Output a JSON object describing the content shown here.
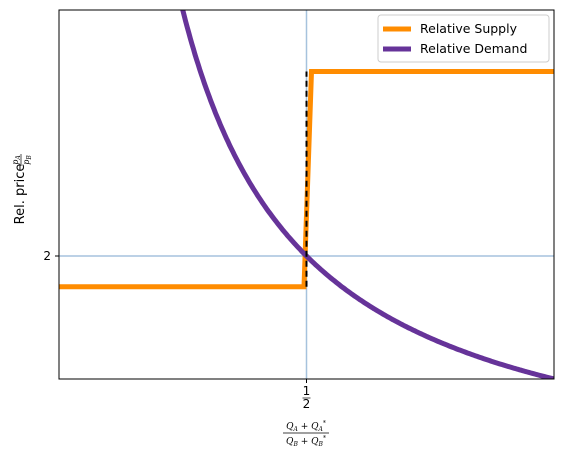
{
  "chart_data": {
    "type": "line",
    "title": "",
    "xlim": [
      0,
      1
    ],
    "ylim": [
      1,
      4
    ],
    "series": [
      {
        "name": "Relative Supply",
        "color": "#ff8c00",
        "style": "step",
        "points": [
          [
            0,
            1.75
          ],
          [
            0.495,
            1.75
          ],
          [
            0.51,
            3.5
          ],
          [
            1,
            3.5
          ]
        ]
      },
      {
        "name": "Relative Demand",
        "color": "#663399",
        "style": "curve",
        "formula": "y = 1 / x",
        "x_range": [
          0.05,
          1
        ]
      }
    ],
    "reference_lines": [
      {
        "type": "vertical",
        "x": 0.5,
        "color": "#a6c2dd"
      },
      {
        "type": "horizontal",
        "y": 2,
        "color": "#a6c2dd"
      }
    ],
    "dashed_segment": {
      "x": 0.5,
      "y_from": 1.75,
      "y_to": 3.5,
      "color": "#000000"
    },
    "x_ticks": [
      {
        "value": 0.5,
        "num": "1",
        "den": "2"
      }
    ],
    "y_ticks": [
      {
        "value": 2,
        "label": "2"
      }
    ],
    "xlabel": {
      "num": "Q_A + Q_A*",
      "den": "Q_B + Q_B*"
    },
    "ylabel": {
      "text": "Rel. price",
      "frac_num": "p_A",
      "frac_den": "p_B"
    },
    "legend": {
      "position": "top-right",
      "entries": [
        "Relative Supply",
        "Relative Demand"
      ]
    },
    "grid": false
  }
}
